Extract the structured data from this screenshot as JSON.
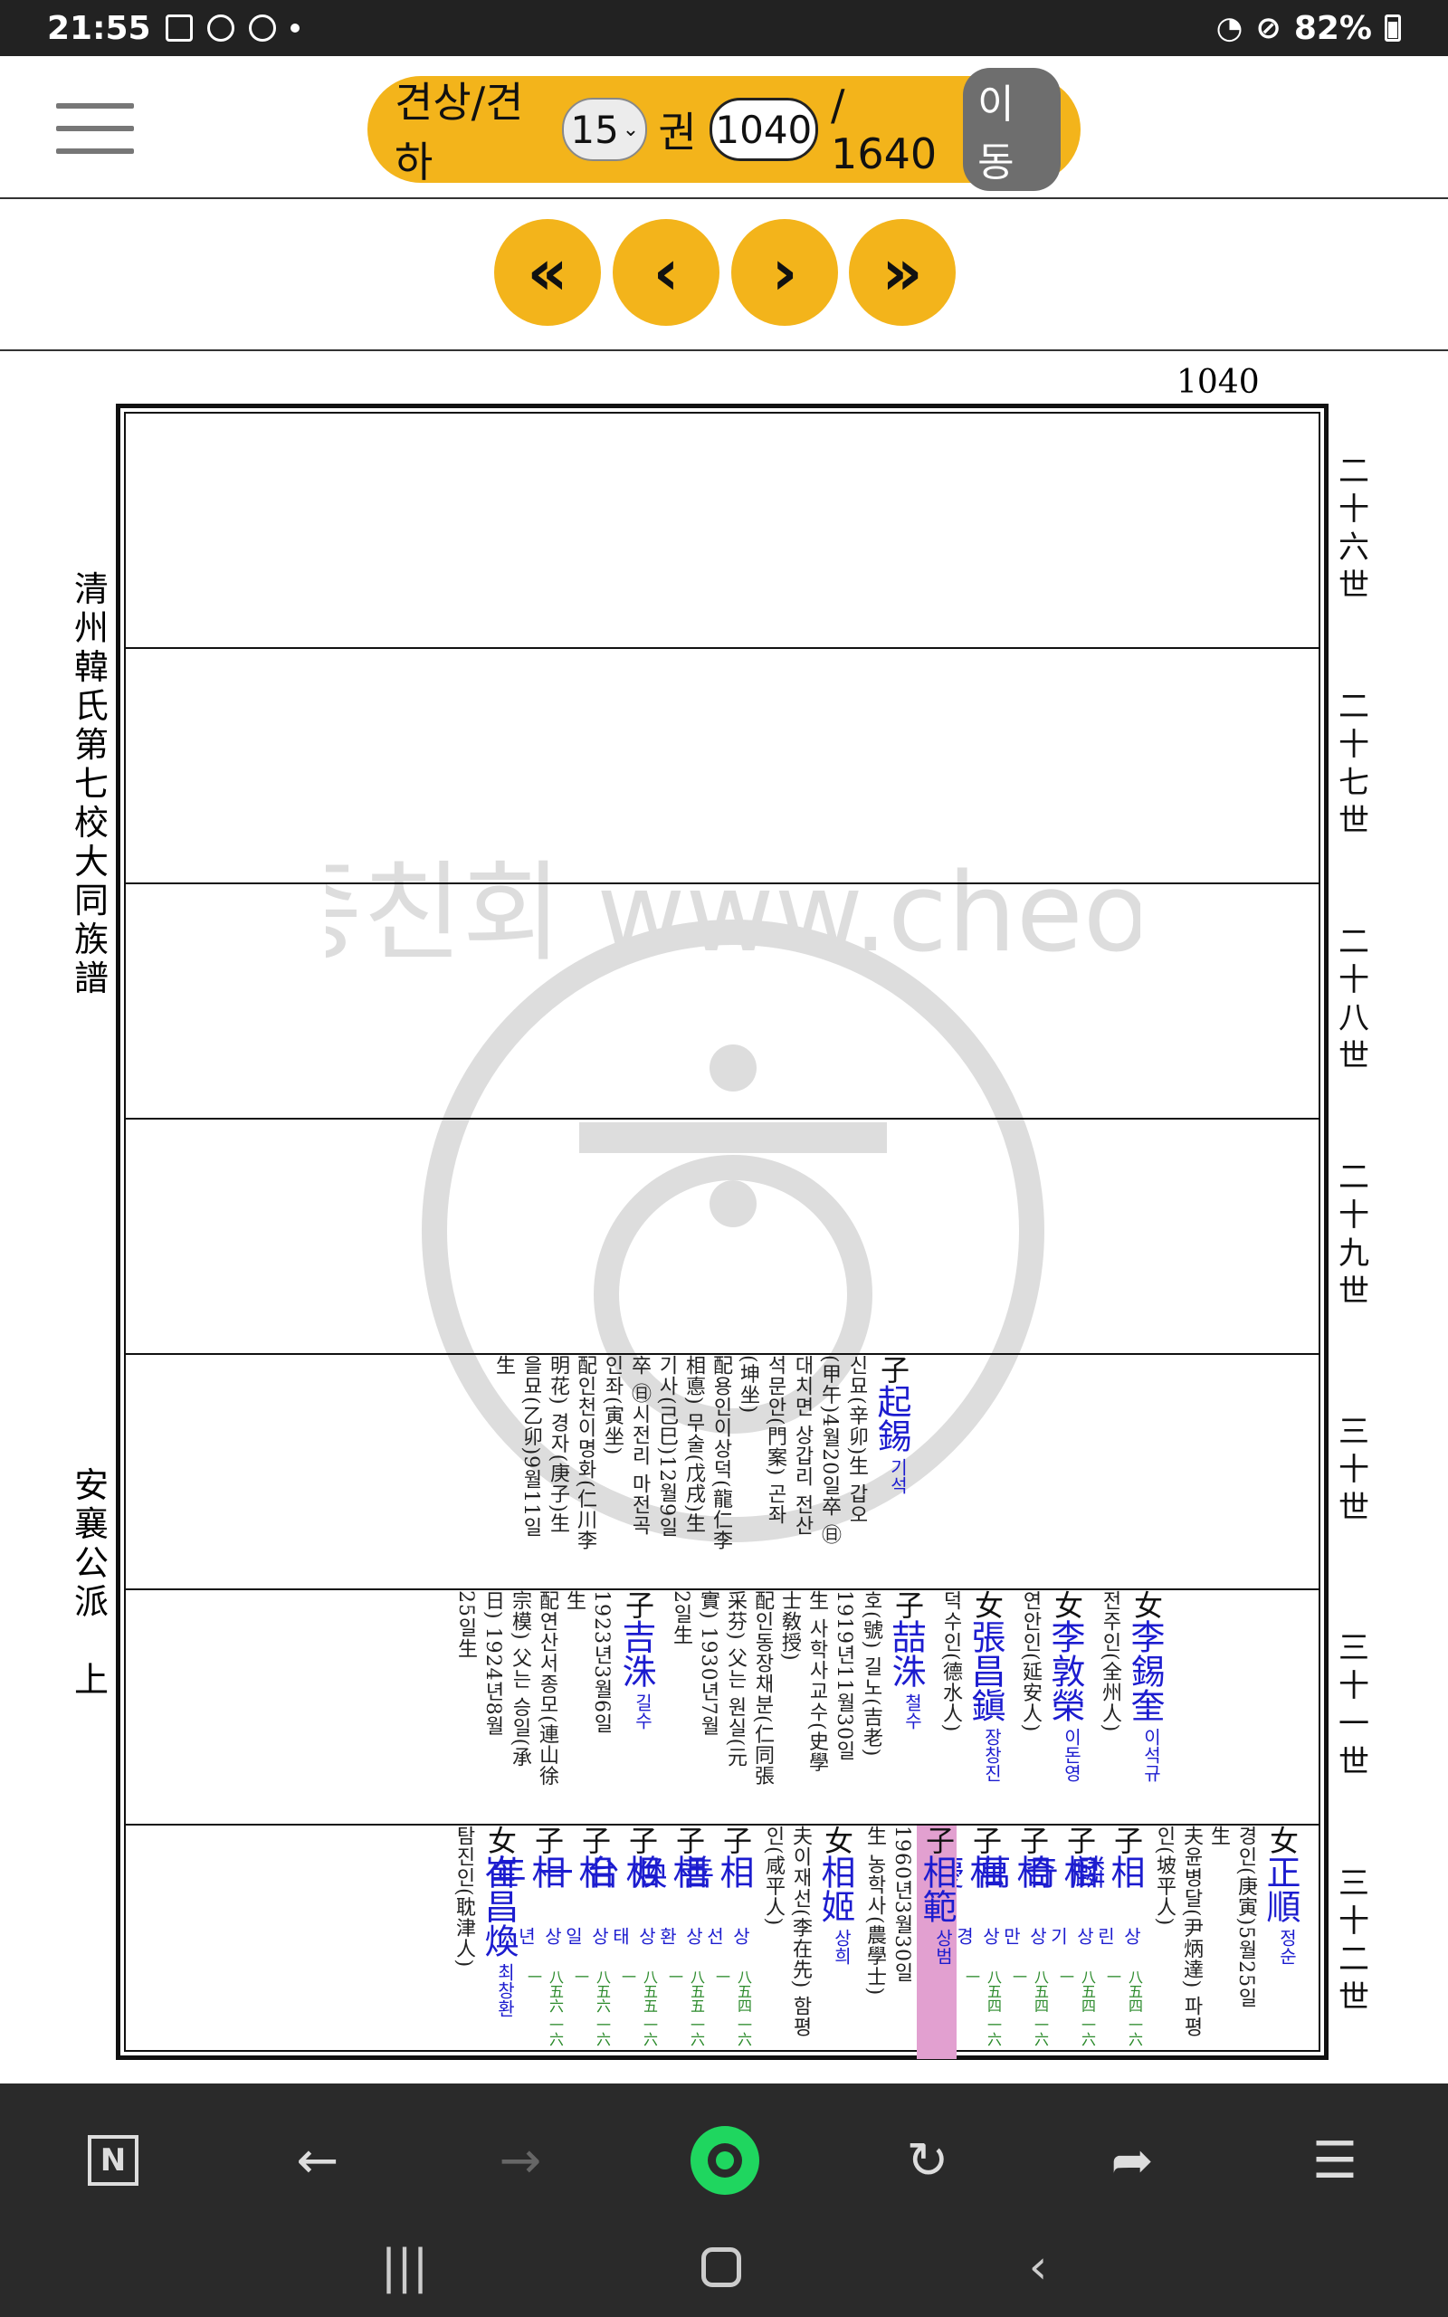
{
  "status": {
    "time": "21:55",
    "battery": "82%"
  },
  "nav": {
    "label_volume": "견상/견하",
    "volume": "15",
    "label_gwon": "권",
    "page": "1040",
    "total": "/ 1640",
    "go": "이동"
  },
  "pager": {
    "first": "«",
    "prev": "‹",
    "next": "›",
    "last": "»"
  },
  "doc": {
    "page_number": "1040",
    "book_title": [
      "清",
      "州",
      "韓",
      "氏",
      "第",
      "七",
      "校",
      "大",
      "同",
      "族",
      "譜"
    ],
    "branch_title": [
      "安",
      "襄",
      "公",
      "派",
      " ",
      "上"
    ],
    "generations": [
      [
        "二",
        "十",
        "六",
        "世"
      ],
      [
        "二",
        "十",
        "七",
        "世"
      ],
      [
        "二",
        "十",
        "八",
        "世"
      ],
      [
        "二",
        "十",
        "九",
        "世"
      ],
      [
        "三",
        "十",
        "世"
      ],
      [
        "三",
        "十",
        "一",
        "世"
      ],
      [
        "三",
        "十",
        "二",
        "世"
      ]
    ],
    "watermark": "청주한씨중앙종친회 www.cheongjuhan.net",
    "row30": [
      {
        "rel": "子",
        "name": "起錫",
        "kr": "기석",
        "lines": [
          "신묘(辛卯)生 갑오",
          "(甲午)4월20일卒 ㊐",
          "대치면 상갑리 전산",
          "석문안(門案) 곤좌",
          "(坤坐)",
          "配용인이상덕(龍仁李",
          "相悳) 무술(戊戌)生",
          "기사(己巳)12월9일",
          "卒 ㊐시전리 마전곡",
          "인좌(寅坐)",
          "配인천이명화(仁川李",
          "明花) 경자(庚子)生",
          "을묘(乙卯)9월11일",
          "生"
        ]
      }
    ],
    "row31": [
      {
        "rel": "女",
        "name": "李錫奎",
        "kr": "이석규",
        "lines": [
          "전주인(全州人)"
        ]
      },
      {
        "rel": "女",
        "name": "李敦榮",
        "kr": "이돈영",
        "lines": [
          "연안인(延安人)"
        ]
      },
      {
        "rel": "女",
        "name": "張昌鎭",
        "kr": "장창진",
        "lines": [
          "덕수인(德水人)"
        ]
      },
      {
        "rel": "子",
        "name": "喆洙",
        "kr": "철수",
        "lines": [
          "호(號) 길노(吉老)",
          "1919년11월30일",
          "生 사학사교수(史學",
          "士敎授)",
          "配인동장채분(仁同張",
          "采芬) 父는 원실(元",
          "實) 1930년7월",
          "2일生"
        ]
      },
      {
        "rel": "子",
        "name": "吉洙",
        "kr": "길수",
        "lines": [
          "1923년3월6일",
          "生",
          "配연산서종모(連山徐",
          "宗模) 父는 승일(承",
          "日) 1924년8월",
          "25일生"
        ]
      }
    ],
    "row32": [
      {
        "rel": "女",
        "name": "正順",
        "kr": "정순",
        "lines": [
          "경인(庚寅)5월25일",
          "生",
          "夫윤병달(尹炳達) 파평",
          "인(坡平人)"
        ]
      },
      {
        "rel": "子",
        "name": "相麟",
        "kr": "상린",
        "code": "八五四 一六一",
        "lines": []
      },
      {
        "rel": "子",
        "name": "相奇",
        "kr": "상기",
        "code": "八五四 一六一",
        "lines": []
      },
      {
        "rel": "子",
        "name": "相萬",
        "kr": "상만",
        "code": "八五四 一六一",
        "lines": []
      },
      {
        "rel": "子",
        "name": "相慶",
        "kr": "상경",
        "code": "八五四 一六一",
        "lines": []
      },
      {
        "rel": "子",
        "name": "相範",
        "kr": "상범",
        "highlight": true,
        "lines": [
          "1960년3월30일",
          "生 농학사(農學士)"
        ]
      },
      {
        "rel": "女",
        "name": "相姬",
        "kr": "상희",
        "lines": [
          "夫이재선(李在先) 함평",
          "인(咸平人)"
        ]
      },
      {
        "rel": "子",
        "name": "相善",
        "kr": "상선",
        "code": "八五四 一六一",
        "lines": []
      },
      {
        "rel": "子",
        "name": "相煥",
        "kr": "상환",
        "code": "八五五 一六一",
        "lines": []
      },
      {
        "rel": "子",
        "name": "相台",
        "kr": "상태",
        "code": "八五五 一六一",
        "lines": []
      },
      {
        "rel": "子",
        "name": "相一",
        "kr": "상일",
        "code": "八五六 一六一",
        "lines": []
      },
      {
        "rel": "子",
        "name": "相年",
        "kr": "상년",
        "code": "八五六 一六一",
        "lines": []
      },
      {
        "rel": "女",
        "name": "崔昌煥",
        "kr": "최창환",
        "lines": [
          "탐진인(耽津人)"
        ]
      }
    ]
  },
  "bottom_nav": {
    "icons": [
      "n-logo-icon",
      "back-arrow-icon",
      "forward-arrow-icon",
      "home-circle-icon",
      "reload-icon",
      "share-icon",
      "menu-icon"
    ]
  }
}
